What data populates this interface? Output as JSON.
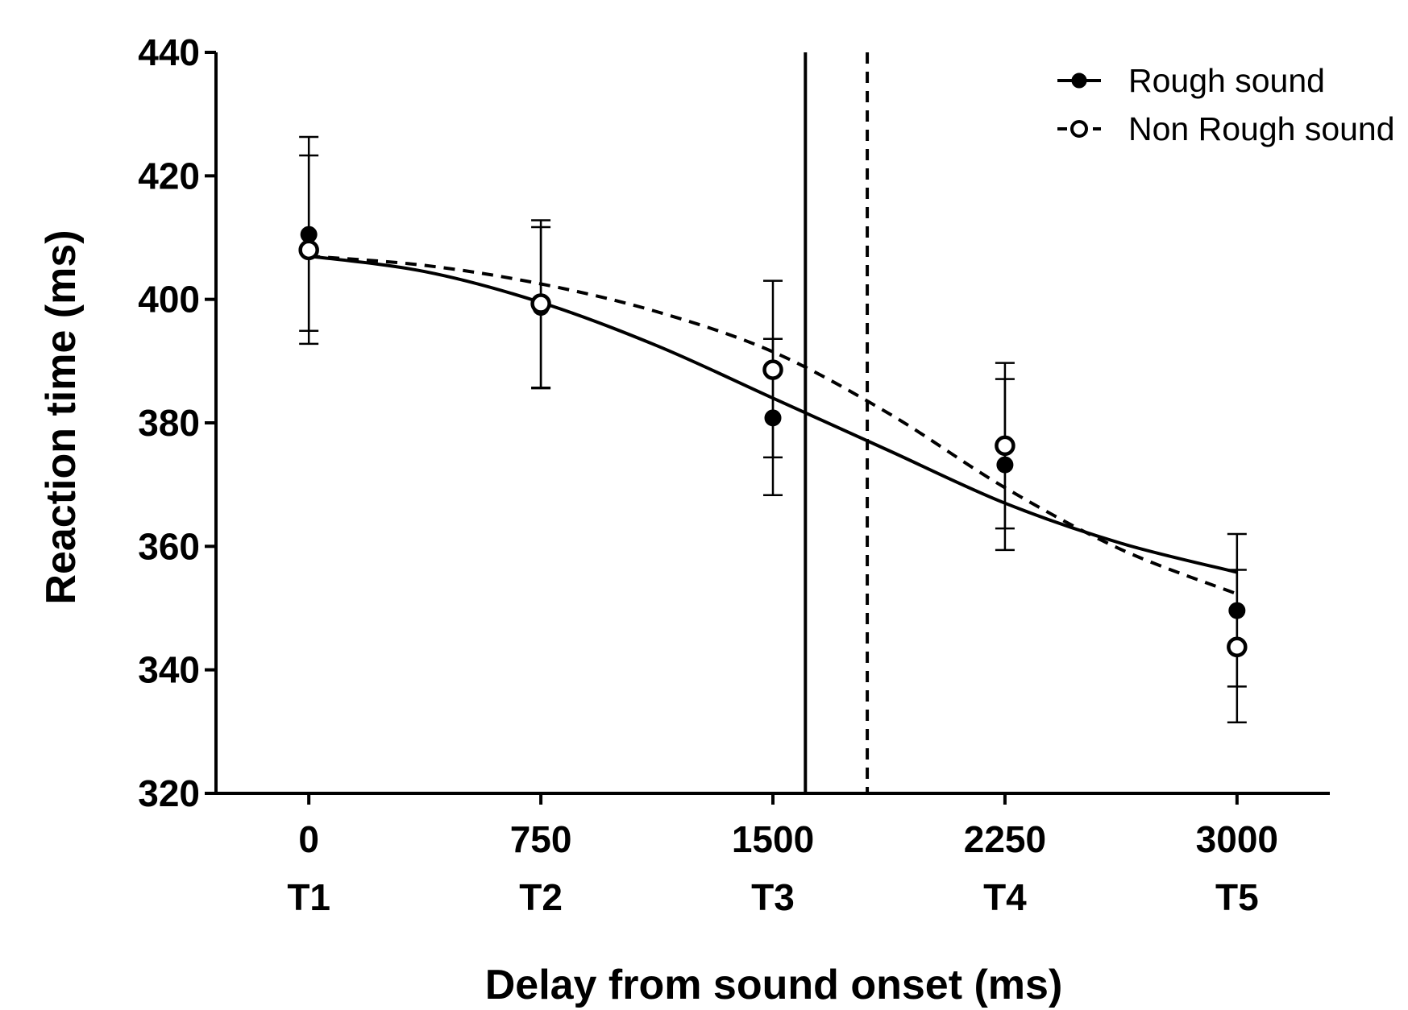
{
  "chart_data": {
    "type": "scatter",
    "xlabel": "Delay from sound onset (ms)",
    "ylabel": "Reaction time (ms)",
    "xlim": [
      -300,
      3300
    ],
    "ylim": [
      320,
      440
    ],
    "yticks": [
      320,
      340,
      360,
      380,
      400,
      420,
      440
    ],
    "x": [
      0,
      750,
      1500,
      2250,
      3000
    ],
    "xtick_labels": [
      "0",
      "750",
      "1500",
      "2250",
      "3000"
    ],
    "xtick_sublabels": [
      "T1",
      "T2",
      "T3",
      "T4",
      "T5"
    ],
    "grid": false,
    "legend_position": "top-right",
    "series": [
      {
        "name": "Rough sound",
        "marker": "filled-circle",
        "line_style": "solid",
        "color": "#000000",
        "values": [
          410.5,
          398.7,
          380.8,
          373.2,
          349.6
        ],
        "error_upper": [
          426.3,
          411.7,
          393.6,
          387.1,
          356.2
        ],
        "error_lower": [
          394.9,
          385.7,
          368.3,
          359.4,
          331.5
        ],
        "fit_curve": [
          [
            0,
            407
          ],
          [
            375,
            404.5
          ],
          [
            750,
            399.5
          ],
          [
            1125,
            392.5
          ],
          [
            1500,
            384
          ],
          [
            1875,
            375.5
          ],
          [
            2250,
            367
          ],
          [
            2625,
            360.5
          ],
          [
            3000,
            355.8
          ]
        ],
        "threshold_x": 1605
      },
      {
        "name": "Non Rough sound",
        "marker": "open-circle",
        "line_style": "dashed",
        "color": "#000000",
        "values": [
          408,
          399.3,
          388.6,
          376.3,
          343.7
        ],
        "error_upper": [
          423.3,
          412.8,
          403,
          389.7,
          362
        ],
        "error_lower": [
          392.8,
          385.6,
          374.4,
          362.9,
          337.3
        ],
        "fit_curve": [
          [
            0,
            407
          ],
          [
            375,
            405.5
          ],
          [
            750,
            402.5
          ],
          [
            1125,
            398
          ],
          [
            1500,
            391.5
          ],
          [
            1875,
            381.5
          ],
          [
            2250,
            369.5
          ],
          [
            2625,
            359.5
          ],
          [
            3000,
            352.3
          ]
        ],
        "threshold_x": 1805
      }
    ]
  }
}
